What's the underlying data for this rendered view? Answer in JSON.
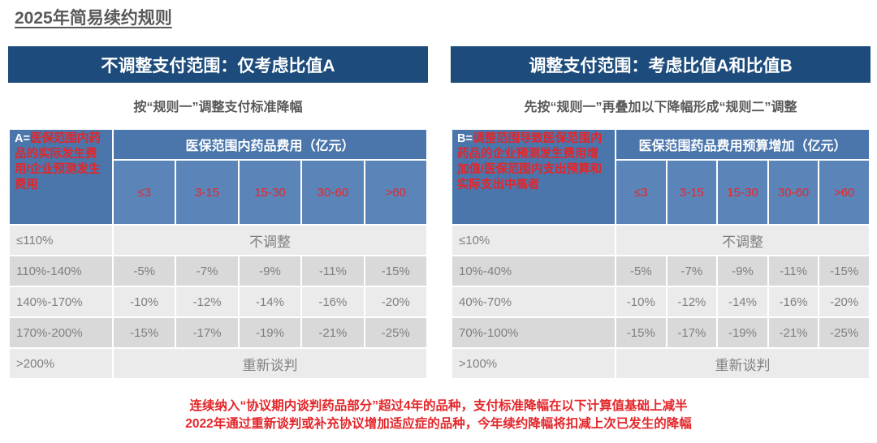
{
  "title": "2025年简易续约规则",
  "panels": [
    {
      "header": "不调整支付范围：仅考虑比值A",
      "subtitle": "按“规则一”调整支付标准降幅",
      "table": {
        "corner_label": "A=",
        "corner_text": "医保范围内药品的实际发生费用/企业预测发生费用",
        "group_header": "医保范围内药品费用（亿元）",
        "columns": [
          "≤3",
          "3-15",
          "15-30",
          "30-60",
          ">60"
        ],
        "rows": [
          [
            "≤110%",
            "不调整"
          ],
          [
            "110%-140%",
            "-5%",
            "-7%",
            "-9%",
            "-11%",
            "-15%"
          ],
          [
            "140%-170%",
            "-10%",
            "-12%",
            "-14%",
            "-16%",
            "-20%"
          ],
          [
            "170%-200%",
            "-15%",
            "-17%",
            "-19%",
            "-21%",
            "-25%"
          ],
          [
            ">200%",
            "重新谈判"
          ]
        ]
      }
    },
    {
      "header": "调整支付范围：考虑比值A和比值B",
      "subtitle": "先按“规则一”再叠加以下降幅形成“规则二”调整",
      "table": {
        "corner_label": "B=",
        "corner_text": "调整范围导致医保范围内药品的企业预测发生费用增加值/医保范围内支出预算和实际支出中高者",
        "group_header": "医保范围药品费用预算增加（亿元）",
        "columns": [
          "≤3",
          "3-15",
          "15-30",
          "30-60",
          ">60"
        ],
        "rows": [
          [
            "≤10%",
            "不调整"
          ],
          [
            "10%-40%",
            "-5%",
            "-7%",
            "-9%",
            "-11%",
            "-15%"
          ],
          [
            "40%-70%",
            "-10%",
            "-12%",
            "-14%",
            "-16%",
            "-20%"
          ],
          [
            "70%-100%",
            "-15%",
            "-17%",
            "-19%",
            "-21%",
            "-25%"
          ],
          [
            ">100%",
            "重新谈判"
          ]
        ]
      }
    }
  ],
  "notes": [
    "连续纳入“协议期内谈判药品部分”超过4年的品种，支付标准降幅在以下计算值基础上减半",
    "2022年通过重新谈判或补充协议增加适应症的品种，今年续约降幅将扣减上次已发生的降幅"
  ]
}
